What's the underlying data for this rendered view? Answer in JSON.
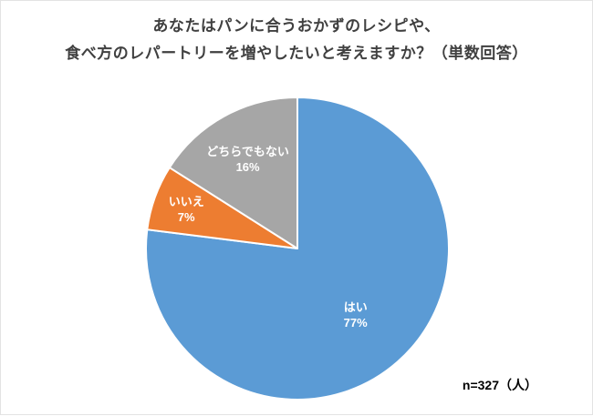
{
  "title": {
    "line1": "あなたはパンに合うおかずのレシピや、",
    "line2": "食べ方のレパートリーを増やしたいと考えますか？（単数回答）"
  },
  "footnote": "n=327（人）",
  "chart_data": {
    "type": "pie",
    "title": "あなたはパンに合うおかずのレシピや、食べ方のレパートリーを増やしたいと考えますか？（単数回答）",
    "sample_size_label": "n=327（人）",
    "start_angle_deg": 0,
    "direction": "clockwise",
    "legend": "none",
    "slices": [
      {
        "label": "はい",
        "value": 77,
        "percent_label": "77%",
        "color": "#5B9BD5",
        "label_r": 0.58
      },
      {
        "label": "いいえ",
        "value": 7,
        "percent_label": "7%",
        "color": "#ED7D31",
        "label_r": 0.78
      },
      {
        "label": "どちらでもない",
        "value": 16,
        "percent_label": "16%",
        "color": "#A6A6A6",
        "label_r": 0.68
      }
    ]
  }
}
